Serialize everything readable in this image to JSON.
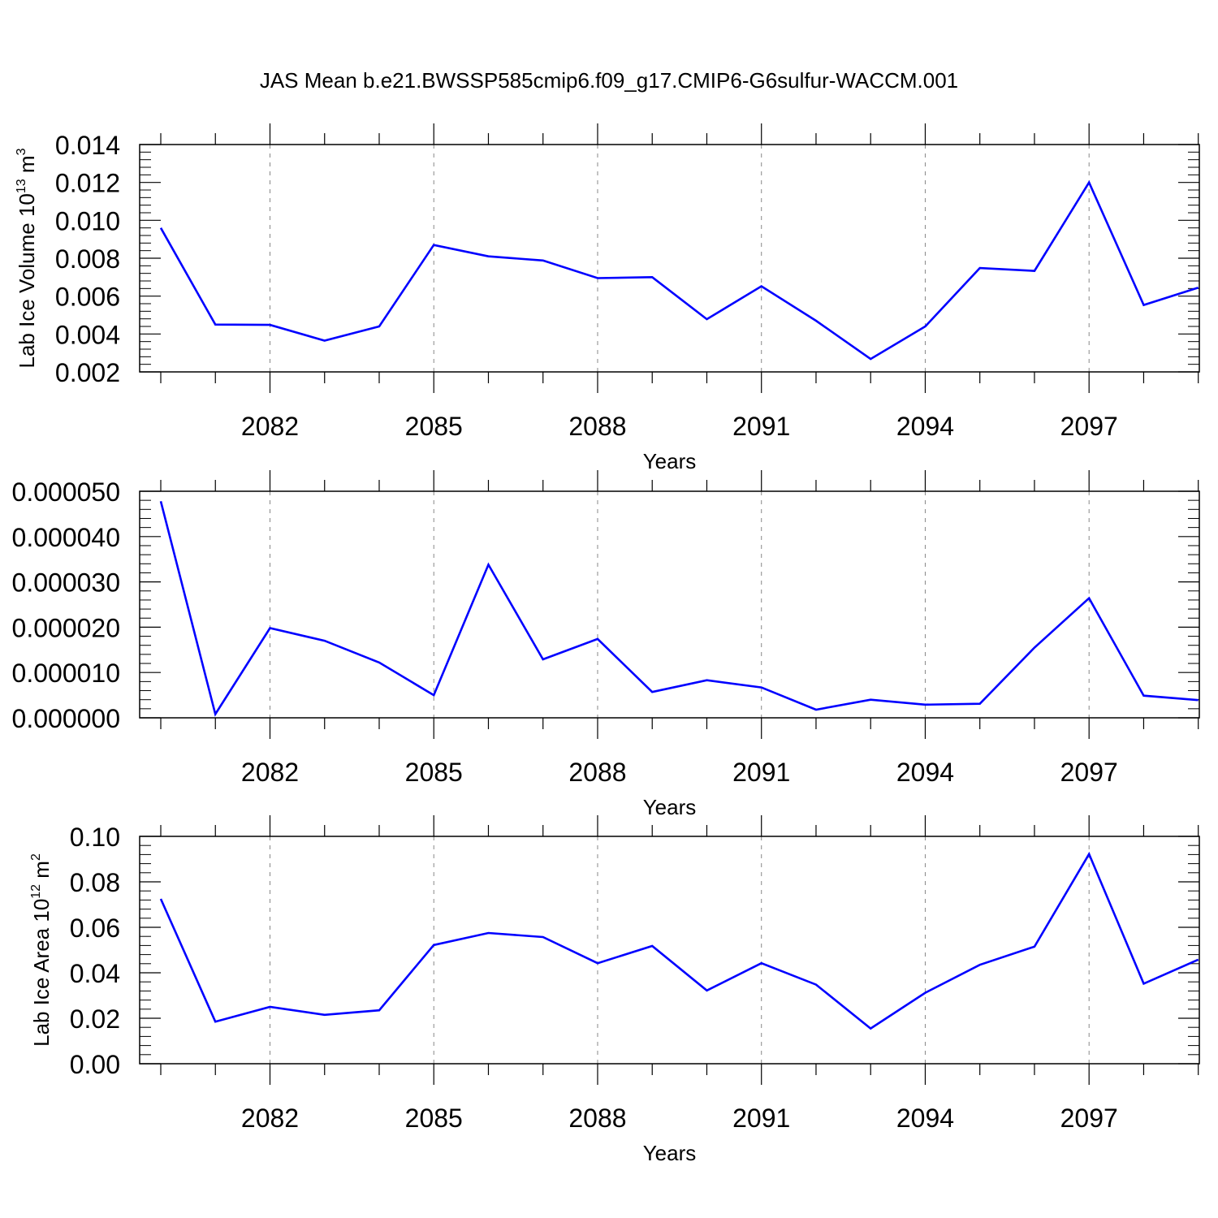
{
  "figure": {
    "title": "JAS Mean b.e21.BWSSP585cmip6.f09_g17.CMIP6-G6sulfur-WACCM.001",
    "line_color": "#0000ff"
  },
  "chart_data": [
    {
      "type": "line",
      "title": "",
      "xlabel": "Years",
      "ylabel_main": "Lab Ice Volume 10",
      "ylabel_exp": "13",
      "ylabel_unit": " m",
      "ylabel_unit_exp": "3",
      "x": [
        2080,
        2081,
        2082,
        2083,
        2084,
        2085,
        2086,
        2087,
        2088,
        2089,
        2090,
        2091,
        2092,
        2093,
        2094,
        2095,
        2096,
        2097,
        2098,
        2099
      ],
      "values": [
        0.0096,
        0.0045,
        0.00448,
        0.00365,
        0.0044,
        0.0087,
        0.0081,
        0.00788,
        0.00695,
        0.007,
        0.00478,
        0.00652,
        0.0047,
        0.00268,
        0.0044,
        0.00748,
        0.00733,
        0.012,
        0.00553,
        0.00645
      ],
      "xlim": [
        2080,
        2099
      ],
      "ylim": [
        0.002,
        0.014
      ],
      "yticks": [
        0.002,
        0.004,
        0.006,
        0.008,
        0.01,
        0.012,
        0.014
      ],
      "ytick_labels": [
        "0.002",
        "0.004",
        "0.006",
        "0.008",
        "0.010",
        "0.012",
        "0.014"
      ],
      "xticks": [
        2082,
        2085,
        2088,
        2091,
        2094,
        2097
      ],
      "xtick_labels": [
        "2082",
        "2085",
        "2088",
        "2091",
        "2094",
        "2097"
      ]
    },
    {
      "type": "line",
      "title": "",
      "xlabel": "Years",
      "ylabel_main": "",
      "ylabel_exp": "",
      "ylabel_unit": "",
      "ylabel_unit_exp": "",
      "x": [
        2080,
        2081,
        2082,
        2083,
        2084,
        2085,
        2086,
        2087,
        2088,
        2089,
        2090,
        2091,
        2092,
        2093,
        2094,
        2095,
        2096,
        2097,
        2098,
        2099
      ],
      "values": [
        4.78e-05,
        8e-07,
        1.98e-05,
        1.7e-05,
        1.22e-05,
        5e-06,
        3.38e-05,
        1.29e-05,
        1.74e-05,
        5.7e-06,
        8.3e-06,
        6.7e-06,
        1.8e-06,
        4e-06,
        2.9e-06,
        3.1e-06,
        1.55e-05,
        2.64e-05,
        4.9e-06,
        3.9e-06
      ],
      "xlim": [
        2080,
        2099
      ],
      "ylim": [
        0.0,
        5e-05
      ],
      "yticks": [
        0.0,
        1e-05,
        2e-05,
        3e-05,
        4e-05,
        5e-05
      ],
      "ytick_labels": [
        "0.000000",
        "0.000010",
        "0.000020",
        "0.000030",
        "0.000040",
        "0.000050"
      ],
      "xticks": [
        2082,
        2085,
        2088,
        2091,
        2094,
        2097
      ],
      "xtick_labels": [
        "2082",
        "2085",
        "2088",
        "2091",
        "2094",
        "2097"
      ]
    },
    {
      "type": "line",
      "title": "",
      "xlabel": "Years",
      "ylabel_main": "Lab Ice Area 10",
      "ylabel_exp": "12",
      "ylabel_unit": " m",
      "ylabel_unit_exp": "2",
      "x": [
        2080,
        2081,
        2082,
        2083,
        2084,
        2085,
        2086,
        2087,
        2088,
        2089,
        2090,
        2091,
        2092,
        2093,
        2094,
        2095,
        2096,
        2097,
        2098,
        2099
      ],
      "values": [
        0.0725,
        0.0185,
        0.025,
        0.0215,
        0.0235,
        0.0522,
        0.0575,
        0.0557,
        0.0442,
        0.0518,
        0.0322,
        0.0442,
        0.0348,
        0.0155,
        0.0312,
        0.0435,
        0.0515,
        0.0922,
        0.0352,
        0.0458
      ],
      "xlim": [
        2080,
        2099
      ],
      "ylim": [
        0.0,
        0.1
      ],
      "yticks": [
        0.0,
        0.02,
        0.04,
        0.06,
        0.08,
        0.1
      ],
      "ytick_labels": [
        "0.00",
        "0.02",
        "0.04",
        "0.06",
        "0.08",
        "0.10"
      ],
      "xticks": [
        2082,
        2085,
        2088,
        2091,
        2094,
        2097
      ],
      "xtick_labels": [
        "2082",
        "2085",
        "2088",
        "2091",
        "2094",
        "2097"
      ]
    }
  ]
}
